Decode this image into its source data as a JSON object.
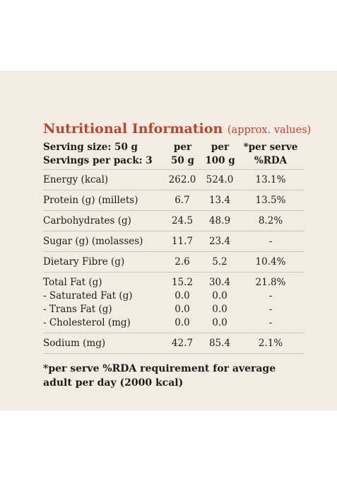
{
  "title": "Nutritional Information",
  "title_note": "(approx. values)",
  "header": {
    "serving_size": "Serving size: 50 g",
    "servings_per_pack": "Servings per pack: 3",
    "col1_line1": "per",
    "col1_line2": "50 g",
    "col2_line1": "per",
    "col2_line2": "100 g",
    "col3_line1": "*per serve",
    "col3_line2": "%RDA"
  },
  "rows": [
    {
      "label": "Energy (kcal)",
      "per50": "262.0",
      "per100": "524.0",
      "rda": "13.1%"
    },
    {
      "label": "Protein (g) (millets)",
      "per50": "6.7",
      "per100": "13.4",
      "rda": "13.5%"
    },
    {
      "label": "Carbohydrates (g)",
      "per50": "24.5",
      "per100": "48.9",
      "rda": "8.2%"
    },
    {
      "label": "Sugar (g) (molasses)",
      "per50": "11.7",
      "per100": "23.4",
      "rda": "-"
    },
    {
      "label": "Dietary Fibre (g)",
      "per50": "2.6",
      "per100": "5.2",
      "rda": "10.4%"
    }
  ],
  "fat_group": [
    {
      "label": "Total Fat (g)",
      "per50": "15.2",
      "per100": "30.4",
      "rda": "21.8%"
    },
    {
      "label": "- Saturated Fat (g)",
      "per50": "0.0",
      "per100": "0.0",
      "rda": "-"
    },
    {
      "label": "- Trans Fat (g)",
      "per50": "0.0",
      "per100": "0.0",
      "rda": "-"
    },
    {
      "label": "- Cholesterol (mg)",
      "per50": "0.0",
      "per100": "0.0",
      "rda": "-"
    }
  ],
  "sodium": {
    "label": "Sodium (mg)",
    "per50": "42.7",
    "per100": "85.4",
    "rda": "2.1%"
  },
  "footnote": "*per serve %RDA requirement for average adult per day (2000 kcal)"
}
